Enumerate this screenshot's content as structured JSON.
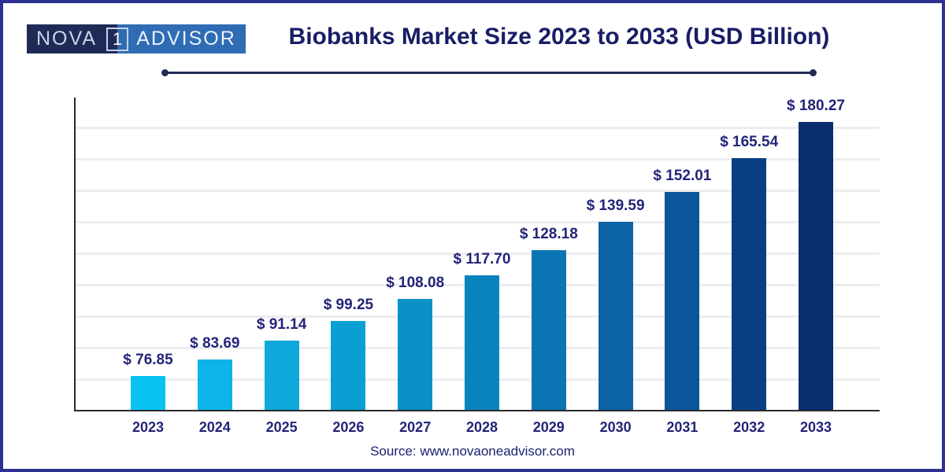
{
  "logo": {
    "part_left": "NOVA",
    "part_one": "1",
    "part_right": "ADVISOR",
    "left_bg": "#1F2B56",
    "right_bg": "#2F6CB4"
  },
  "chart_data": {
    "type": "bar",
    "title": "Biobanks Market Size 2023 to 2033 (USD Billion)",
    "categories": [
      "2023",
      "2024",
      "2025",
      "2026",
      "2027",
      "2028",
      "2029",
      "2030",
      "2031",
      "2032",
      "2033"
    ],
    "values": [
      76.85,
      83.69,
      91.14,
      99.25,
      108.08,
      117.7,
      128.18,
      139.59,
      152.01,
      165.54,
      180.27
    ],
    "value_labels": [
      "$ 76.85",
      "$ 83.69",
      "$ 91.14",
      "$ 99.25",
      "$ 108.08",
      "$ 117.70",
      "$ 128.18",
      "$ 139.59",
      "$ 152.01",
      "$ 165.54",
      "$ 180.27"
    ],
    "value_prefix": "$ ",
    "unit": "USD Billion",
    "bar_colors": [
      "#06C3F0",
      "#0DB4E7",
      "#0FA8DC",
      "#099FD4",
      "#0A91C8",
      "#0A84BE",
      "#0C74B2",
      "#0C63A6",
      "#0B559B",
      "#093F81",
      "#0A2E6E"
    ],
    "xlabel": "",
    "ylabel": "",
    "ylim": [
      63,
      191
    ],
    "y_axis_tick_labels_visible": false,
    "grid": "horizontal",
    "legend": "none",
    "label_color": "#232478",
    "axis_color": "#2A2A2E"
  },
  "footer": {
    "source": "Source: www.novaoneadvisor.com"
  }
}
